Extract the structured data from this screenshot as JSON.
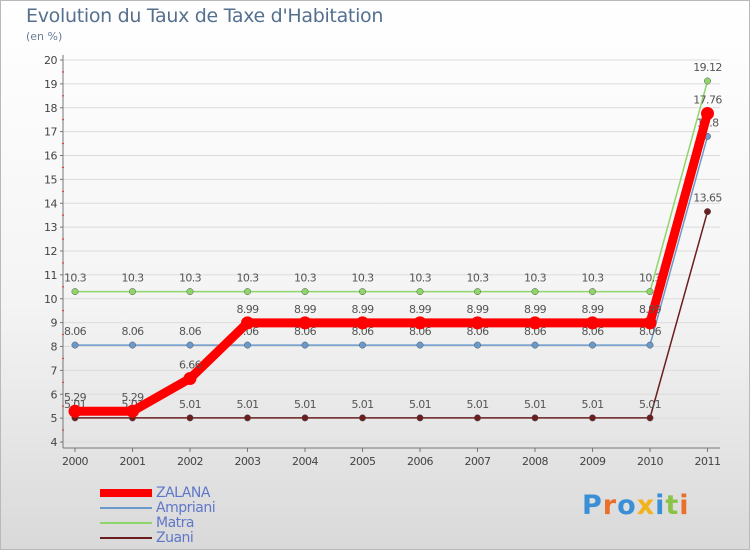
{
  "chart_data": {
    "type": "line",
    "title": "Evolution du Taux de Taxe d'Habitation",
    "subtitle": "(en %)",
    "x": [
      "2000",
      "2001",
      "2002",
      "2003",
      "2004",
      "2005",
      "2006",
      "2007",
      "2008",
      "2009",
      "2010",
      "2011"
    ],
    "ylim": [
      4,
      20
    ],
    "yticks": [
      "4",
      "5",
      "6",
      "7",
      "8",
      "9",
      "10",
      "11",
      "12",
      "13",
      "14",
      "15",
      "16",
      "17",
      "18",
      "19",
      "20"
    ],
    "series": [
      {
        "name": "Zuani",
        "color": "#6b1e1e",
        "values": [
          5.01,
          5.01,
          5.01,
          5.01,
          5.01,
          5.01,
          5.01,
          5.01,
          5.01,
          5.01,
          5.01,
          13.65
        ],
        "labels": [
          "5.01",
          "5.01",
          "5.01",
          "5.01",
          "5.01",
          "5.01",
          "5.01",
          "5.01",
          "5.01",
          "5.01",
          "5.01",
          "13.65"
        ]
      },
      {
        "name": "Ampriani",
        "color": "#6a9acb",
        "values": [
          8.06,
          8.06,
          8.06,
          8.06,
          8.06,
          8.06,
          8.06,
          8.06,
          8.06,
          8.06,
          8.06,
          16.8
        ],
        "labels": [
          "8.06",
          "8.06",
          "8.06",
          "8.06",
          "8.06",
          "8.06",
          "8.06",
          "8.06",
          "8.06",
          "8.06",
          "8.06",
          "16.8"
        ]
      },
      {
        "name": "Matra",
        "color": "#8ed66a",
        "values": [
          10.3,
          10.3,
          10.3,
          10.3,
          10.3,
          10.3,
          10.3,
          10.3,
          10.3,
          10.3,
          10.3,
          19.12
        ],
        "labels": [
          "10.3",
          "10.3",
          "10.3",
          "10.3",
          "10.3",
          "10.3",
          "10.3",
          "10.3",
          "10.3",
          "10.3",
          "10.3",
          "19.12"
        ]
      },
      {
        "name": "ZALANA",
        "color": "#ff0000",
        "values": [
          5.29,
          5.29,
          6.66,
          8.99,
          8.99,
          8.99,
          8.99,
          8.99,
          8.99,
          8.99,
          8.99,
          17.76
        ],
        "labels": [
          "5.29",
          "5.29",
          "6.66",
          "8.99",
          "8.99",
          "8.99",
          "8.99",
          "8.99",
          "8.99",
          "8.99",
          "8.99",
          "17.76"
        ]
      }
    ],
    "legend": [
      {
        "name": "ZALANA",
        "color": "#ff0000"
      },
      {
        "name": "Ampriani",
        "color": "#6a9acb"
      },
      {
        "name": "Matra",
        "color": "#8ed66a"
      },
      {
        "name": "Zuani",
        "color": "#6b1e1e"
      }
    ]
  },
  "logo": {
    "letters": [
      "P",
      "r",
      "o",
      "x",
      "i",
      "t",
      "i"
    ],
    "colors": [
      "#3a8fd6",
      "#e8702a",
      "#3a8fd6",
      "#f2b21b",
      "#3a8fd6",
      "#8bc34a",
      "#e8702a"
    ]
  }
}
